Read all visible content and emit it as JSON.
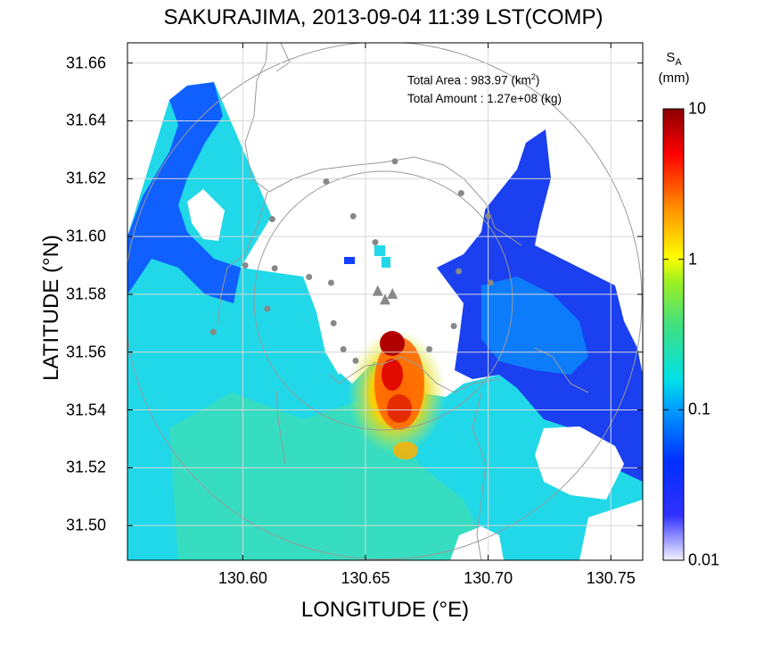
{
  "title": "SAKURAJIMA, 2013-09-04 11:39 LST(COMP)",
  "chart_data": {
    "type": "heatmap",
    "title": "SAKURAJIMA, 2013-09-04 11:39 LST(COMP)",
    "xlabel": "LONGITUDE (°E)",
    "ylabel": "LATITUDE (°N)",
    "xlim": [
      130.553,
      130.763
    ],
    "ylim": [
      31.488,
      31.667
    ],
    "x_ticks": [
      "130.60",
      "130.65",
      "130.70",
      "130.75"
    ],
    "x_tick_values": [
      130.6,
      130.65,
      130.7,
      130.75
    ],
    "y_ticks": [
      "31.50",
      "31.52",
      "31.54",
      "31.56",
      "31.58",
      "31.60",
      "31.62",
      "31.64",
      "31.66"
    ],
    "y_tick_values": [
      31.5,
      31.52,
      31.54,
      31.56,
      31.58,
      31.6,
      31.62,
      31.64,
      31.66
    ],
    "grid": true,
    "colorbar": {
      "label_main": "S",
      "label_sub": "A",
      "unit": "(mm)",
      "scale": "log",
      "range": [
        0.01,
        10
      ],
      "ticks": [
        "10",
        "1",
        "0.1",
        "0.01"
      ],
      "tick_values": [
        10,
        1,
        0.1,
        0.01
      ],
      "colors": [
        "#f4f4ff",
        "#0000ff",
        "#0090ff",
        "#00e8e8",
        "#50e870",
        "#ffff00",
        "#ff9000",
        "#ff0000",
        "#8b0000"
      ]
    },
    "annotations": {
      "area_label": "Total Area   : 983.97 (km",
      "area_sup": "2",
      "area_close": ")",
      "amount_label": "Total Amount : 1.27e+08 (kg)"
    },
    "range_rings_center": [
      130.66,
      31.578
    ],
    "observation_points": [
      [
        130.662,
        31.626
      ],
      [
        130.634,
        31.619
      ],
      [
        130.689,
        31.615
      ],
      [
        130.645,
        31.607
      ],
      [
        130.654,
        31.598
      ],
      [
        130.7,
        31.607
      ],
      [
        130.612,
        31.606
      ],
      [
        130.601,
        31.59
      ],
      [
        130.613,
        31.589
      ],
      [
        130.627,
        31.586
      ],
      [
        130.636,
        31.584
      ],
      [
        130.688,
        31.588
      ],
      [
        130.701,
        31.584
      ],
      [
        130.61,
        31.575
      ],
      [
        130.637,
        31.57
      ],
      [
        130.686,
        31.569
      ],
      [
        130.588,
        31.567
      ],
      [
        130.641,
        31.561
      ],
      [
        130.676,
        31.561
      ],
      [
        130.646,
        31.557
      ]
    ],
    "vents": [
      [
        130.655,
        31.581
      ],
      [
        130.658,
        31.578
      ],
      [
        130.661,
        31.58
      ]
    ]
  }
}
